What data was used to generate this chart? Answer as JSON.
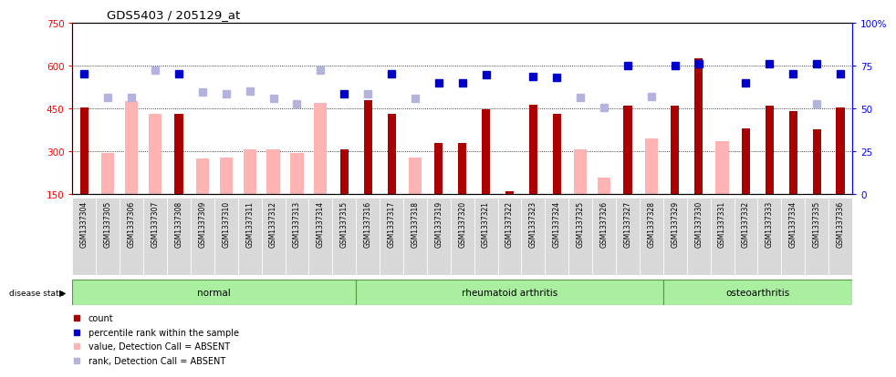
{
  "title": "GDS5403 / 205129_at",
  "samples": [
    "GSM1337304",
    "GSM1337305",
    "GSM1337306",
    "GSM1337307",
    "GSM1337308",
    "GSM1337309",
    "GSM1337310",
    "GSM1337311",
    "GSM1337312",
    "GSM1337313",
    "GSM1337314",
    "GSM1337315",
    "GSM1337316",
    "GSM1337317",
    "GSM1337318",
    "GSM1337319",
    "GSM1337320",
    "GSM1337321",
    "GSM1337322",
    "GSM1337323",
    "GSM1337324",
    "GSM1337325",
    "GSM1337326",
    "GSM1337327",
    "GSM1337328",
    "GSM1337329",
    "GSM1337330",
    "GSM1337331",
    "GSM1337332",
    "GSM1337333",
    "GSM1337334",
    "GSM1337335",
    "GSM1337336"
  ],
  "count_values": [
    453,
    null,
    null,
    null,
    432,
    null,
    null,
    null,
    null,
    null,
    null,
    308,
    478,
    432,
    null,
    328,
    328,
    448,
    160,
    462,
    432,
    null,
    null,
    460,
    null,
    460,
    625,
    null,
    380,
    460,
    440,
    378,
    453
  ],
  "count_absent": [
    null,
    295,
    475,
    432,
    null,
    275,
    278,
    308,
    308,
    295,
    470,
    null,
    null,
    null,
    280,
    null,
    null,
    null,
    null,
    null,
    null,
    308,
    210,
    null,
    345,
    null,
    null,
    335,
    null,
    null,
    null,
    null,
    null
  ],
  "rank_values": [
    572,
    null,
    null,
    null,
    572,
    null,
    null,
    null,
    null,
    null,
    null,
    500,
    null,
    572,
    null,
    538,
    538,
    567,
    null,
    562,
    558,
    null,
    null,
    600,
    null,
    600,
    607,
    null,
    538,
    605,
    572,
    607,
    572
  ],
  "rank_absent": [
    null,
    488,
    488,
    583,
    null,
    508,
    500,
    512,
    485,
    465,
    583,
    null,
    500,
    null,
    485,
    null,
    null,
    null,
    null,
    null,
    null,
    488,
    452,
    null,
    492,
    null,
    null,
    null,
    null,
    null,
    null,
    465,
    null
  ],
  "group_boundaries": [
    0,
    12,
    25,
    33
  ],
  "group_labels": [
    "normal",
    "rheumatoid arthritis",
    "osteoarthritis"
  ],
  "ylim_left": [
    150,
    750
  ],
  "ylim_right": [
    0,
    100
  ],
  "yticks_left": [
    150,
    300,
    450,
    600,
    750
  ],
  "yticks_right": [
    0,
    25,
    50,
    75,
    100
  ],
  "gridlines": [
    300,
    450,
    600
  ],
  "bar_color_dark": "#aa0000",
  "bar_color_absent": "#ffb3b3",
  "rank_color_dark": "#0000cc",
  "rank_color_absent": "#b3b3dd",
  "group_color": "#aaeea0",
  "group_border_color": "#559944",
  "bg_tick_color": "#cccccc"
}
